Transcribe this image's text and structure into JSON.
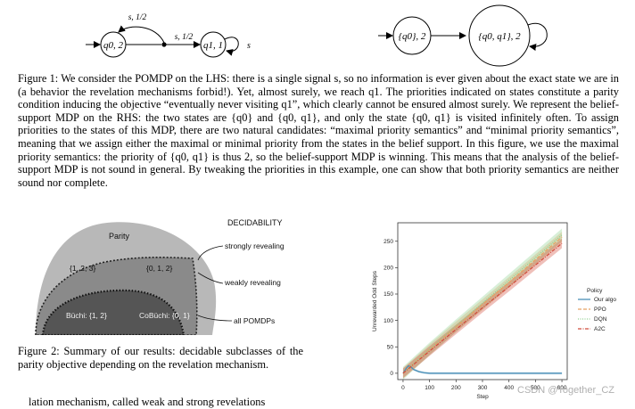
{
  "figure1": {
    "left_automaton": {
      "state1_label": "q0, 2",
      "state2_label": "q1, 1",
      "top_edge_label": "s, 1/2",
      "mid_edge_label": "s, 1/2",
      "self_loop_label": "s"
    },
    "right_automaton": {
      "state1_label": "{q0}, 2",
      "state2_label": "{q0, q1}, 2"
    },
    "caption": {
      "label": "Figure 1:",
      "text": "We consider the POMDP on the LHS: there is a single signal s, so no information is ever given about the exact state we are in (a behavior the revelation mechanisms forbid!). Yet, almost surely, we reach q1. The priorities indicated on states constitute a parity condition inducing the objective “eventually never visiting q1”, which clearly cannot be ensured almost surely. We represent the belief-support MDP on the RHS: the two states are {q0} and {q0, q1}, and only the state {q0, q1} is visited infinitely often. To assign priorities to the states of this MDP, there are two natural candidates: “maximal priority semantics” and “minimal priority semantics”, meaning that we assign either the maximal or minimal priority from the states in the belief support. In this figure, we use the maximal priority semantics: the priority of {q0, q1} is thus 2, so the belief-support MDP is winning. This means that the analysis of the belief-support MDP is not sound in general. By tweaking the priorities in this example, one can show that both priority semantics are neither sound nor complete."
    }
  },
  "figure2": {
    "title": "DECIDABILITY",
    "regions": {
      "parity": "Parity",
      "set123": "{1, 2, 3}",
      "set012": "{0, 1, 2}",
      "buchi": "Büchi: {1, 2}",
      "cobuchi": "CoBüchi: {0, 1}"
    },
    "callouts": {
      "strong": "strongly revealing",
      "weak": "weakly revealing",
      "all": "all POMDPs"
    },
    "caption": {
      "label": "Figure 2:",
      "text": "Summary of our results: decidable subclasses of the parity objective depending on the revelation mechanism."
    }
  },
  "chart_data": {
    "type": "line",
    "xlabel": "Step",
    "ylabel": "Unrewarded Odd Steps",
    "xlim": [
      -20,
      620
    ],
    "ylim": [
      -12,
      285
    ],
    "xticks": [
      0,
      100,
      200,
      300,
      400,
      500,
      600
    ],
    "yticks": [
      0,
      50,
      100,
      150,
      200,
      250
    ],
    "legend_title": "Policy",
    "legend_position": "right",
    "series": [
      {
        "name": "Our algo",
        "color": "#4a90b8",
        "style": "solid",
        "x": [
          0,
          10,
          20,
          30,
          40,
          60,
          80,
          100,
          200,
          300,
          400,
          500,
          600
        ],
        "y": [
          0,
          8,
          14,
          12,
          7,
          3,
          1,
          0,
          0,
          0,
          0,
          0,
          0
        ],
        "band": 2
      },
      {
        "name": "PPO",
        "color": "#e8a060",
        "style": "dashed",
        "x": [
          0,
          100,
          200,
          300,
          400,
          500,
          600
        ],
        "y": [
          0,
          45,
          88,
          130,
          172,
          215,
          258
        ],
        "band": 10
      },
      {
        "name": "DQN",
        "color": "#8fd08f",
        "style": "dotted",
        "x": [
          0,
          100,
          200,
          300,
          400,
          500,
          600
        ],
        "y": [
          0,
          46,
          90,
          133,
          176,
          219,
          262
        ],
        "band": 12
      },
      {
        "name": "A2C",
        "color": "#d04a3a",
        "style": "dashdot",
        "x": [
          0,
          100,
          200,
          300,
          400,
          500,
          600
        ],
        "y": [
          0,
          42,
          83,
          124,
          164,
          205,
          246
        ],
        "band": 9
      }
    ]
  },
  "watermark": "CSDN @Together_CZ",
  "bottom_text": "lation mechanism, called weak and strong revelations"
}
